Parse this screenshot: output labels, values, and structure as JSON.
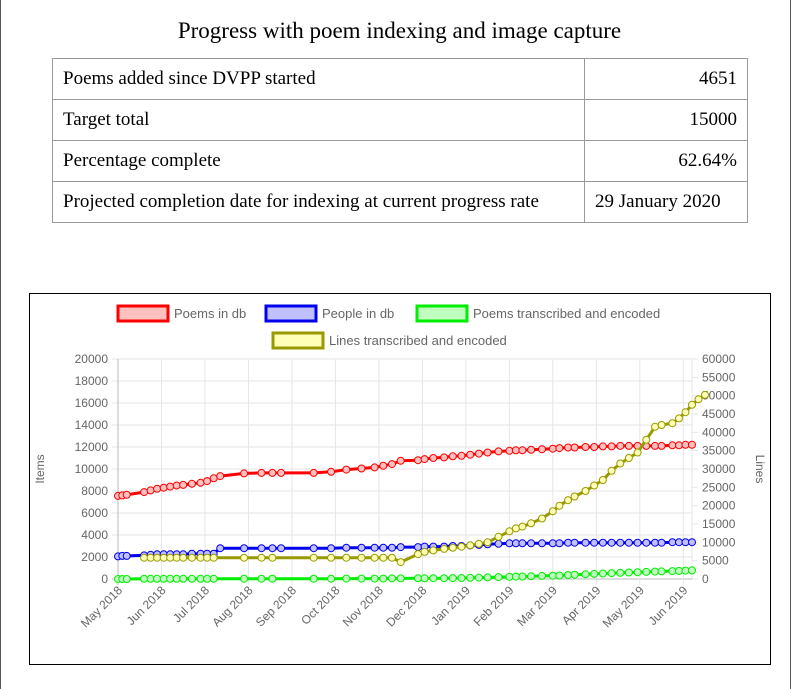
{
  "page": {
    "title": "Progress with poem indexing and image capture"
  },
  "table": {
    "rows": [
      {
        "label": "Poems added since DVPP started",
        "value": "4651"
      },
      {
        "label": "Target total",
        "value": "15000"
      },
      {
        "label": "Percentage complete",
        "value": "62.64%"
      },
      {
        "label": "Projected completion date for indexing at current progress rate",
        "value": "29 January 2020"
      }
    ]
  },
  "chart_data": {
    "type": "line",
    "ylabel": "Items",
    "y2label": "Lines",
    "ylim": [
      0,
      20000
    ],
    "y2lim": [
      0,
      60000
    ],
    "yticks": [
      0,
      2000,
      4000,
      6000,
      8000,
      10000,
      12000,
      14000,
      16000,
      18000,
      20000
    ],
    "y2ticks": [
      0,
      5000,
      10000,
      15000,
      20000,
      25000,
      30000,
      35000,
      40000,
      45000,
      50000,
      55000,
      60000
    ],
    "x_labels": [
      "May 2018",
      "Jun 2018",
      "Jul 2018",
      "Aug 2018",
      "Sep 2018",
      "Oct 2018",
      "Nov 2018",
      "Dec 2018",
      "Jan 2019",
      "Feb 2019",
      "Mar 2019",
      "Apr 2019",
      "May 2019",
      "Jun 2019"
    ],
    "x_range": [
      0,
      13.2
    ],
    "grid": true,
    "legend_position": "top",
    "series": [
      {
        "name": "Poems in db",
        "axis": "left",
        "color": "#ff0000",
        "fill": "#ffc0c0",
        "points": [
          [
            0,
            7550
          ],
          [
            0.1,
            7600
          ],
          [
            0.2,
            7650
          ],
          [
            0.6,
            7900
          ],
          [
            0.75,
            8050
          ],
          [
            0.9,
            8200
          ],
          [
            1.05,
            8300
          ],
          [
            1.2,
            8400
          ],
          [
            1.35,
            8500
          ],
          [
            1.5,
            8550
          ],
          [
            1.7,
            8650
          ],
          [
            1.9,
            8750
          ],
          [
            2.05,
            8900
          ],
          [
            2.2,
            9150
          ],
          [
            2.35,
            9350
          ],
          [
            2.9,
            9600
          ],
          [
            3.3,
            9650
          ],
          [
            3.55,
            9650
          ],
          [
            3.75,
            9650
          ],
          [
            4.5,
            9650
          ],
          [
            4.9,
            9750
          ],
          [
            5.25,
            9950
          ],
          [
            5.6,
            10050
          ],
          [
            5.9,
            10150
          ],
          [
            6.1,
            10300
          ],
          [
            6.3,
            10450
          ],
          [
            6.5,
            10750
          ],
          [
            6.9,
            10800
          ],
          [
            7.05,
            10900
          ],
          [
            7.25,
            11000
          ],
          [
            7.5,
            11050
          ],
          [
            7.7,
            11150
          ],
          [
            7.9,
            11200
          ],
          [
            8.1,
            11300
          ],
          [
            8.3,
            11400
          ],
          [
            8.5,
            11500
          ],
          [
            8.75,
            11600
          ],
          [
            9.0,
            11650
          ],
          [
            9.15,
            11700
          ],
          [
            9.3,
            11700
          ],
          [
            9.5,
            11750
          ],
          [
            9.75,
            11800
          ],
          [
            10.0,
            11850
          ],
          [
            10.15,
            11900
          ],
          [
            10.35,
            11950
          ],
          [
            10.5,
            11950
          ],
          [
            10.75,
            12000
          ],
          [
            10.95,
            12000
          ],
          [
            11.15,
            12050
          ],
          [
            11.35,
            12050
          ],
          [
            11.55,
            12100
          ],
          [
            11.75,
            12100
          ],
          [
            11.95,
            12100
          ],
          [
            12.15,
            12100
          ],
          [
            12.35,
            12100
          ],
          [
            12.5,
            12100
          ],
          [
            12.75,
            12150
          ],
          [
            12.9,
            12150
          ],
          [
            13.05,
            12200
          ],
          [
            13.2,
            12200
          ]
        ]
      },
      {
        "name": "People in db",
        "axis": "left",
        "color": "#0000ee",
        "fill": "#c0c0ff",
        "points": [
          [
            0,
            2050
          ],
          [
            0.1,
            2100
          ],
          [
            0.2,
            2100
          ],
          [
            0.6,
            2150
          ],
          [
            0.75,
            2200
          ],
          [
            0.9,
            2250
          ],
          [
            1.05,
            2250
          ],
          [
            1.2,
            2250
          ],
          [
            1.35,
            2250
          ],
          [
            1.5,
            2250
          ],
          [
            1.7,
            2300
          ],
          [
            1.9,
            2300
          ],
          [
            2.05,
            2300
          ],
          [
            2.2,
            2300
          ],
          [
            2.35,
            2800
          ],
          [
            2.9,
            2800
          ],
          [
            3.3,
            2800
          ],
          [
            3.55,
            2800
          ],
          [
            3.75,
            2800
          ],
          [
            4.5,
            2800
          ],
          [
            4.9,
            2800
          ],
          [
            5.25,
            2850
          ],
          [
            5.6,
            2850
          ],
          [
            5.9,
            2850
          ],
          [
            6.1,
            2850
          ],
          [
            6.3,
            2850
          ],
          [
            6.5,
            2900
          ],
          [
            6.9,
            2900
          ],
          [
            7.05,
            2950
          ],
          [
            7.25,
            2950
          ],
          [
            7.5,
            2950
          ],
          [
            7.7,
            3000
          ],
          [
            7.9,
            3000
          ],
          [
            8.1,
            3050
          ],
          [
            8.3,
            3100
          ],
          [
            8.5,
            3150
          ],
          [
            8.75,
            3200
          ],
          [
            9.0,
            3250
          ],
          [
            9.15,
            3250
          ],
          [
            9.3,
            3250
          ],
          [
            9.5,
            3250
          ],
          [
            9.75,
            3250
          ],
          [
            10.0,
            3250
          ],
          [
            10.15,
            3250
          ],
          [
            10.35,
            3300
          ],
          [
            10.5,
            3300
          ],
          [
            10.75,
            3300
          ],
          [
            10.95,
            3300
          ],
          [
            11.15,
            3300
          ],
          [
            11.35,
            3300
          ],
          [
            11.55,
            3300
          ],
          [
            11.75,
            3300
          ],
          [
            11.95,
            3300
          ],
          [
            12.15,
            3300
          ],
          [
            12.35,
            3300
          ],
          [
            12.5,
            3300
          ],
          [
            12.75,
            3350
          ],
          [
            12.9,
            3350
          ],
          [
            13.05,
            3350
          ],
          [
            13.2,
            3350
          ]
        ]
      },
      {
        "name": "Poems transcribed and encoded",
        "axis": "left",
        "color": "#00ee00",
        "fill": "#c0ffc0",
        "points": [
          [
            0,
            0
          ],
          [
            0.1,
            0
          ],
          [
            0.2,
            0
          ],
          [
            0.6,
            20
          ],
          [
            0.75,
            20
          ],
          [
            0.9,
            20
          ],
          [
            1.05,
            20
          ],
          [
            1.2,
            20
          ],
          [
            1.35,
            20
          ],
          [
            1.5,
            20
          ],
          [
            1.7,
            20
          ],
          [
            1.9,
            20
          ],
          [
            2.05,
            20
          ],
          [
            2.2,
            20
          ],
          [
            2.9,
            30
          ],
          [
            3.3,
            30
          ],
          [
            3.55,
            30
          ],
          [
            4.5,
            30
          ],
          [
            4.9,
            30
          ],
          [
            5.25,
            40
          ],
          [
            5.6,
            40
          ],
          [
            5.9,
            40
          ],
          [
            6.1,
            40
          ],
          [
            6.3,
            50
          ],
          [
            6.5,
            50
          ],
          [
            6.9,
            60
          ],
          [
            7.05,
            60
          ],
          [
            7.25,
            70
          ],
          [
            7.5,
            70
          ],
          [
            7.7,
            80
          ],
          [
            7.9,
            90
          ],
          [
            8.1,
            110
          ],
          [
            8.3,
            130
          ],
          [
            8.5,
            150
          ],
          [
            8.75,
            170
          ],
          [
            9.0,
            200
          ],
          [
            9.15,
            220
          ],
          [
            9.3,
            230
          ],
          [
            9.5,
            250
          ],
          [
            9.75,
            280
          ],
          [
            10.0,
            300
          ],
          [
            10.15,
            320
          ],
          [
            10.35,
            360
          ],
          [
            10.5,
            390
          ],
          [
            10.75,
            430
          ],
          [
            10.95,
            460
          ],
          [
            11.15,
            500
          ],
          [
            11.35,
            530
          ],
          [
            11.55,
            560
          ],
          [
            11.75,
            590
          ],
          [
            11.95,
            620
          ],
          [
            12.15,
            650
          ],
          [
            12.35,
            670
          ],
          [
            12.5,
            690
          ],
          [
            12.75,
            720
          ],
          [
            12.9,
            740
          ],
          [
            13.05,
            760
          ],
          [
            13.2,
            780
          ]
        ]
      },
      {
        "name": "Lines transcribed and encoded",
        "axis": "right",
        "color": "#999900",
        "fill": "#ffffb8",
        "points": [
          [
            0.6,
            5800
          ],
          [
            0.75,
            5800
          ],
          [
            0.9,
            5800
          ],
          [
            1.05,
            5800
          ],
          [
            1.2,
            5800
          ],
          [
            1.35,
            5800
          ],
          [
            1.5,
            5800
          ],
          [
            1.7,
            5800
          ],
          [
            1.9,
            5800
          ],
          [
            2.05,
            5800
          ],
          [
            2.2,
            5800
          ],
          [
            2.9,
            5800
          ],
          [
            3.3,
            5800
          ],
          [
            3.55,
            5800
          ],
          [
            4.5,
            5800
          ],
          [
            4.9,
            5800
          ],
          [
            5.25,
            5800
          ],
          [
            5.6,
            5800
          ],
          [
            5.9,
            5800
          ],
          [
            6.1,
            5800
          ],
          [
            6.3,
            5800
          ],
          [
            6.5,
            4600
          ],
          [
            6.9,
            6800
          ],
          [
            7.05,
            7400
          ],
          [
            7.25,
            7800
          ],
          [
            7.5,
            8200
          ],
          [
            7.7,
            8500
          ],
          [
            7.9,
            8800
          ],
          [
            8.1,
            9200
          ],
          [
            8.3,
            9600
          ],
          [
            8.5,
            10000
          ],
          [
            8.75,
            11500
          ],
          [
            9.0,
            13000
          ],
          [
            9.15,
            13800
          ],
          [
            9.3,
            14300
          ],
          [
            9.5,
            15200
          ],
          [
            9.75,
            16500
          ],
          [
            10.0,
            18500
          ],
          [
            10.15,
            20000
          ],
          [
            10.35,
            21500
          ],
          [
            10.5,
            22500
          ],
          [
            10.75,
            24000
          ],
          [
            10.95,
            25500
          ],
          [
            11.15,
            27000
          ],
          [
            11.35,
            29500
          ],
          [
            11.55,
            31500
          ],
          [
            11.75,
            33000
          ],
          [
            11.95,
            34500
          ],
          [
            12.15,
            38000
          ],
          [
            12.35,
            41500
          ],
          [
            12.5,
            42000
          ],
          [
            12.75,
            42500
          ],
          [
            12.9,
            43800
          ],
          [
            13.05,
            45500
          ],
          [
            13.2,
            47500
          ],
          [
            13.35,
            49000
          ],
          [
            13.5,
            50200
          ]
        ]
      }
    ]
  }
}
